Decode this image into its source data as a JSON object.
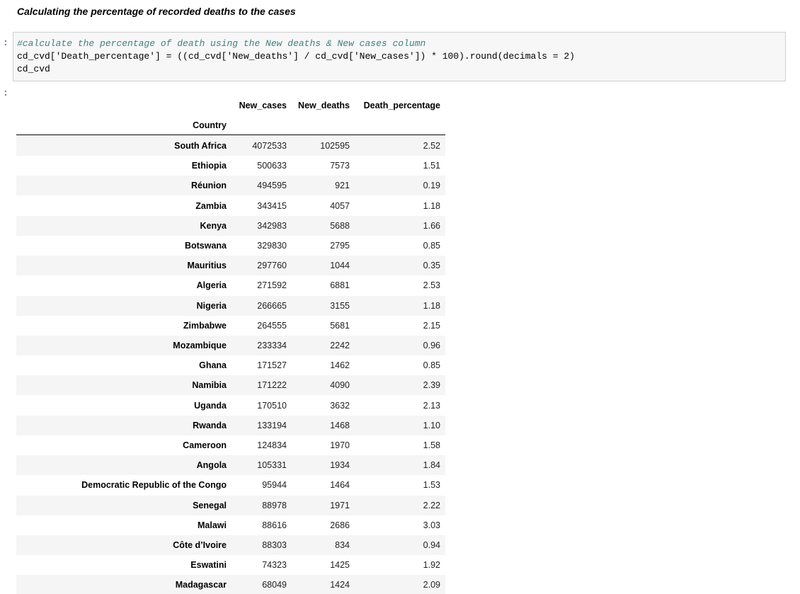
{
  "header": {
    "title": "Calculating the percentage of recorded deaths to the cases"
  },
  "code_cell": {
    "prompt": ":",
    "lines": [
      "#calculate the percentage of death using the New deaths & New cases column",
      "cd_cvd['Death_percentage'] = ((cd_cvd['New_deaths'] / cd_cvd['New_cases']) * 100).round(decimals = 2)",
      "cd_cvd"
    ]
  },
  "output_cell": {
    "prompt": ":"
  },
  "table": {
    "columns": [
      "New_cases",
      "New_deaths",
      "Death_percentage"
    ],
    "index_name": "Country",
    "rows": [
      [
        "South Africa",
        4072533,
        102595,
        "2.52"
      ],
      [
        "Ethiopia",
        500633,
        7573,
        "1.51"
      ],
      [
        "Réunion",
        494595,
        921,
        "0.19"
      ],
      [
        "Zambia",
        343415,
        4057,
        "1.18"
      ],
      [
        "Kenya",
        342983,
        5688,
        "1.66"
      ],
      [
        "Botswana",
        329830,
        2795,
        "0.85"
      ],
      [
        "Mauritius",
        297760,
        1044,
        "0.35"
      ],
      [
        "Algeria",
        271592,
        6881,
        "2.53"
      ],
      [
        "Nigeria",
        266665,
        3155,
        "1.18"
      ],
      [
        "Zimbabwe",
        264555,
        5681,
        "2.15"
      ],
      [
        "Mozambique",
        233334,
        2242,
        "0.96"
      ],
      [
        "Ghana",
        171527,
        1462,
        "0.85"
      ],
      [
        "Namibia",
        171222,
        4090,
        "2.39"
      ],
      [
        "Uganda",
        170510,
        3632,
        "2.13"
      ],
      [
        "Rwanda",
        133194,
        1468,
        "1.10"
      ],
      [
        "Cameroon",
        124834,
        1970,
        "1.58"
      ],
      [
        "Angola",
        105331,
        1934,
        "1.84"
      ],
      [
        "Democratic Republic of the Congo",
        95944,
        1464,
        "1.53"
      ],
      [
        "Senegal",
        88978,
        1971,
        "2.22"
      ],
      [
        "Malawi",
        88616,
        2686,
        "3.03"
      ],
      [
        "Côte d’Ivoire",
        88303,
        834,
        "0.94"
      ],
      [
        "Eswatini",
        74323,
        1425,
        "1.92"
      ],
      [
        "Madagascar",
        68049,
        1424,
        "2.09"
      ]
    ]
  }
}
